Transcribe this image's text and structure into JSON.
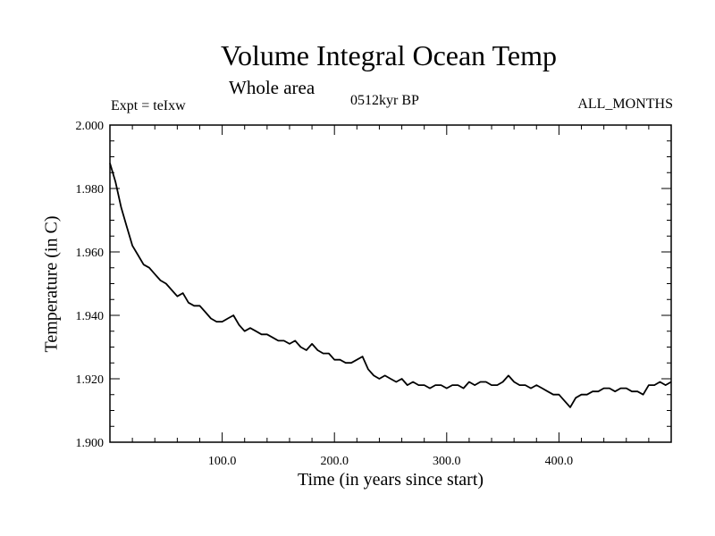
{
  "header": {
    "title": "Volume Integral Ocean Temp",
    "subtitle": "Whole area",
    "expt": "Expt = teIxw",
    "period": "0512kyr BP",
    "months": "ALL_MONTHS"
  },
  "chart_data": {
    "type": "line",
    "title": "Volume Integral Ocean Temp",
    "subtitle": "Whole area",
    "xlabel": "Time (in years since start)",
    "ylabel": "Temperature (in C)",
    "xlim": [
      0,
      500
    ],
    "ylim": [
      1.9,
      2.0
    ],
    "x_ticks": [
      100,
      200,
      300,
      400
    ],
    "x_tick_labels": [
      "100.0",
      "200.0",
      "300.0",
      "400.0"
    ],
    "y_ticks": [
      1.9,
      1.92,
      1.94,
      1.96,
      1.98,
      2.0
    ],
    "y_tick_labels": [
      "1.900",
      "1.920",
      "1.940",
      "1.960",
      "1.980",
      "2.000"
    ],
    "grid": false,
    "color": "#000000",
    "series": [
      {
        "x": [
          0,
          5,
          10,
          15,
          20,
          25,
          30,
          35,
          40,
          45,
          50,
          55,
          60,
          65,
          70,
          75,
          80,
          85,
          90,
          95,
          100,
          105,
          110,
          115,
          120,
          125,
          130,
          135,
          140,
          145,
          150,
          155,
          160,
          165,
          170,
          175,
          180,
          185,
          190,
          195,
          200,
          205,
          210,
          215,
          220,
          225,
          230,
          235,
          240,
          245,
          250,
          255,
          260,
          265,
          270,
          275,
          280,
          285,
          290,
          295,
          300,
          305,
          310,
          315,
          320,
          325,
          330,
          335,
          340,
          345,
          350,
          355,
          360,
          365,
          370,
          375,
          380,
          385,
          390,
          395,
          400,
          405,
          410,
          415,
          420,
          425,
          430,
          435,
          440,
          445,
          450,
          455,
          460,
          465,
          470,
          475,
          480,
          485,
          490,
          495,
          500
        ],
        "values": [
          1.988,
          1.982,
          1.974,
          1.968,
          1.962,
          1.959,
          1.956,
          1.955,
          1.953,
          1.951,
          1.95,
          1.948,
          1.946,
          1.947,
          1.944,
          1.943,
          1.943,
          1.941,
          1.939,
          1.938,
          1.938,
          1.939,
          1.94,
          1.937,
          1.935,
          1.936,
          1.935,
          1.934,
          1.934,
          1.933,
          1.932,
          1.932,
          1.931,
          1.932,
          1.93,
          1.929,
          1.931,
          1.929,
          1.928,
          1.928,
          1.926,
          1.926,
          1.925,
          1.925,
          1.926,
          1.927,
          1.923,
          1.921,
          1.92,
          1.921,
          1.92,
          1.919,
          1.92,
          1.918,
          1.919,
          1.918,
          1.918,
          1.917,
          1.918,
          1.918,
          1.917,
          1.918,
          1.918,
          1.917,
          1.919,
          1.918,
          1.919,
          1.919,
          1.918,
          1.918,
          1.919,
          1.921,
          1.919,
          1.918,
          1.918,
          1.917,
          1.918,
          1.917,
          1.916,
          1.915,
          1.915,
          1.913,
          1.911,
          1.914,
          1.915,
          1.915,
          1.916,
          1.916,
          1.917,
          1.917,
          1.916,
          1.917,
          1.917,
          1.916,
          1.916,
          1.915,
          1.918,
          1.918,
          1.919,
          1.918,
          1.919
        ]
      }
    ]
  }
}
